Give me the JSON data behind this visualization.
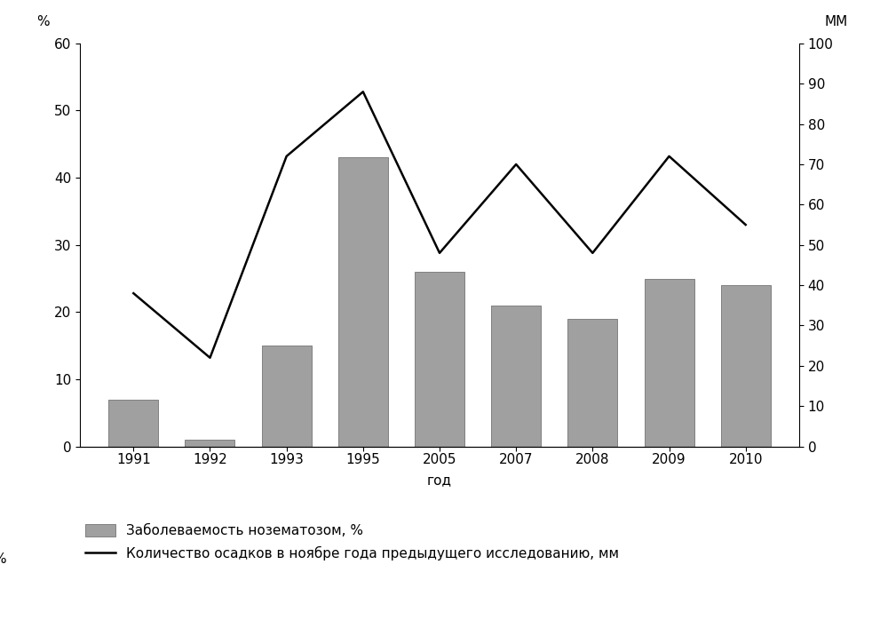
{
  "years": [
    "1991",
    "1992",
    "1993",
    "1995",
    "2005",
    "2007",
    "2008",
    "2009",
    "2010"
  ],
  "bar_values": [
    7,
    1,
    15,
    43,
    26,
    21,
    19,
    25,
    24
  ],
  "line_values": [
    38,
    22,
    72,
    88,
    48,
    70,
    48,
    72,
    55
  ],
  "bar_color": "#a0a0a0",
  "bar_edgecolor": "#808080",
  "line_color": "#000000",
  "left_ylim": [
    0,
    60
  ],
  "right_ylim": [
    0,
    100
  ],
  "left_yticks": [
    0,
    10,
    20,
    30,
    40,
    50,
    60
  ],
  "right_yticks": [
    0,
    10,
    20,
    30,
    40,
    50,
    60,
    70,
    80,
    90,
    100
  ],
  "left_ylabel": "%",
  "right_ylabel": "ММ",
  "xlabel": "год",
  "xlabel_pos_index": 4,
  "legend_bar": "Заболеваемость нозематозом, %",
  "legend_line": "Количество осадков в ноябре года предыдущего исследованию, мм",
  "background_color": "#ffffff",
  "line_width": 1.8,
  "bar_width": 0.65,
  "font_size": 11
}
